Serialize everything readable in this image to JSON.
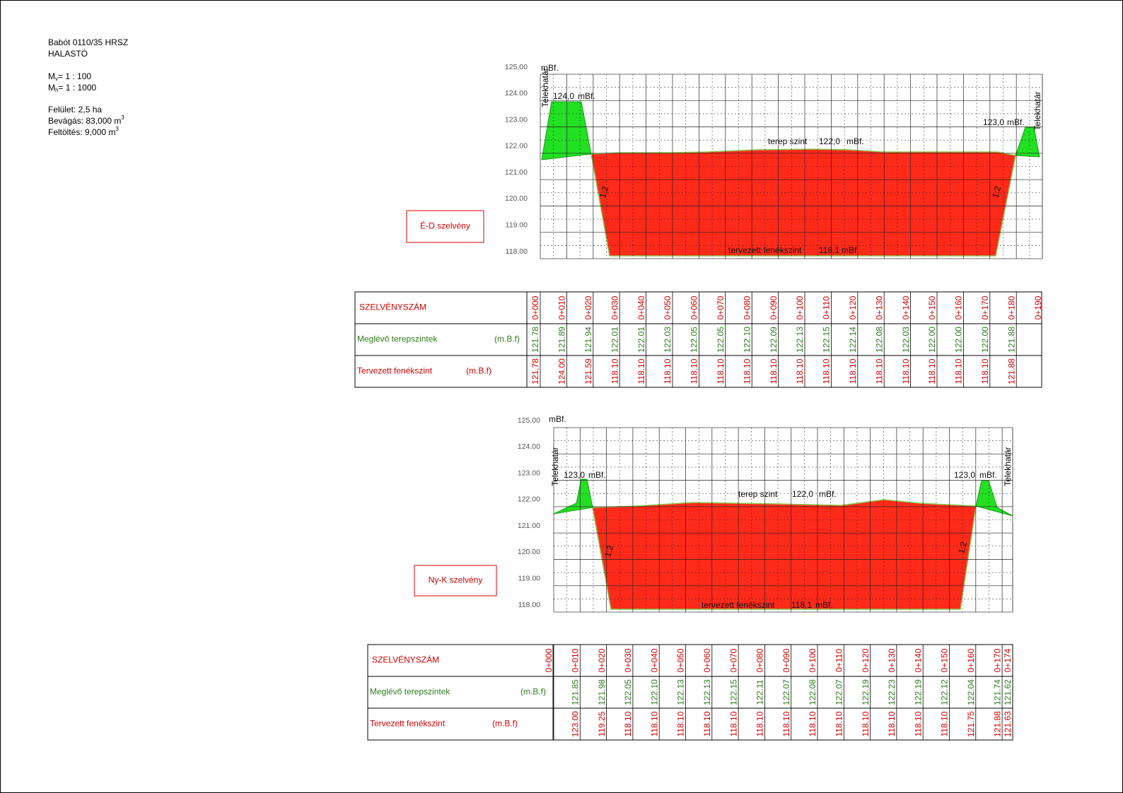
{
  "info": {
    "place": "Babót 0110/35 HRSZ",
    "name": "HALASTÓ",
    "scale_v": {
      "m": "M",
      "sub": "v",
      "rest": "= 1 : 100"
    },
    "scale_h": {
      "m": "M",
      "sub": "h",
      "rest": "= 1 : 1000"
    },
    "area": "Felület: 2,5 ha",
    "cut": {
      "text": "Bevágás: 83,000 m",
      "sup": "3"
    },
    "fill": {
      "text": "Feltöltés: 9,000 m",
      "sup": "3"
    }
  },
  "sections": [
    {
      "title": "É-D szelvény",
      "unit": "mBf.",
      "levels": [
        "125,00",
        "124.00",
        "123.00",
        "122.00",
        "121.00",
        "120.00",
        "119.00",
        "118.00"
      ],
      "left_crest": "124,0",
      "right_crest": "123,0",
      "crest_unit": "mBf.",
      "terrain_label": "terep szint",
      "terrain_level": "122,0",
      "terrain_unit": "mBf.",
      "bottom_label": "tervezett fenékszint",
      "bottom_level": "118,1",
      "bottom_unit": "mBf",
      "slope": "1:2",
      "boundary": "Telekhatár",
      "table": {
        "station_header": "SZELVÉNYSZÁM",
        "existing_header": "Meglévő terepszintek",
        "existing_unit": "(m.B.f)",
        "design_header": "Tervezett fenékszint",
        "design_unit": "(m.B.f)",
        "stations": [
          "0+000",
          "0+010",
          "0+020",
          "0+030",
          "0+040",
          "0+050",
          "0+060",
          "0+070",
          "0+080",
          "0+090",
          "0+100",
          "0+110",
          "0+120",
          "0+130",
          "0+140",
          "0+150",
          "0+160",
          "0+170",
          "0+180",
          "0+190"
        ],
        "existing": [
          "121.78",
          "121.89",
          "121.94",
          "122.01",
          "122.01",
          "122.03",
          "122.05",
          "122.05",
          "122.10",
          "122.09",
          "122.13",
          "122.15",
          "122.14",
          "122.08",
          "122.03",
          "122.00",
          "122.00",
          "122.00",
          "121.88",
          null
        ],
        "design": [
          "121,78",
          "124.00",
          "121.59",
          "118.10",
          "118.10",
          "118.10",
          "118.10",
          "118.10",
          "118.10",
          "118.10",
          "118.10",
          "118.10",
          "118.10",
          "118.10",
          "118.10",
          "118.10",
          "118.10",
          "118.10",
          "121.88",
          null
        ]
      }
    },
    {
      "title": "Ny-K szelvény",
      "unit": "mBf.",
      "levels": [
        "125,00",
        "124.00",
        "123.00",
        "122.00",
        "121.00",
        "120.00",
        "119.00",
        "118.00"
      ],
      "left_crest": "123,0",
      "right_crest": "123,0",
      "crest_unit": "mBf.",
      "terrain_label": "terep szint",
      "terrain_level": "122,0",
      "terrain_unit": "mBf.",
      "bottom_label": "tervezett fenékszint",
      "bottom_level": "118,1",
      "bottom_unit": "mBf.",
      "slope": "1:2",
      "boundary": "Telekhatár",
      "table": {
        "station_header": "SZELVÉNYSZÁM",
        "existing_header": "Meglévő terepszintek",
        "existing_unit": "(m.B.f)",
        "design_header": "Tervezett fenékszint",
        "design_unit": "(m.B.f)",
        "stations": [
          "0+000",
          "0+010",
          "0+020",
          "0+030",
          "0+040",
          "0+050",
          "0+060",
          "0+070",
          "0+080",
          "0+090",
          "0+100",
          "0+110",
          "0+120",
          "0+130",
          "0+140",
          "0+150",
          "0+160",
          "0+170",
          "0+174"
        ],
        "existing": [
          null,
          "121.85",
          "121.98",
          "122.05",
          "122.10",
          "122.13",
          "122.13",
          "122.15",
          "122.11",
          "122.07",
          "122.08",
          "122.07",
          "122.19",
          "122.23",
          "122.19",
          "122.12",
          "122.04",
          "121.74",
          "121.62"
        ],
        "design": [
          null,
          "123.00",
          "119.25",
          "118.10",
          "118.10",
          "118.10",
          "118.10",
          "118.10",
          "118.10",
          "118.10",
          "118.10",
          "118.10",
          "118.10",
          "118.10",
          "118.10",
          "118.10",
          "121.75",
          "121.88",
          "121.63"
        ]
      }
    }
  ]
}
